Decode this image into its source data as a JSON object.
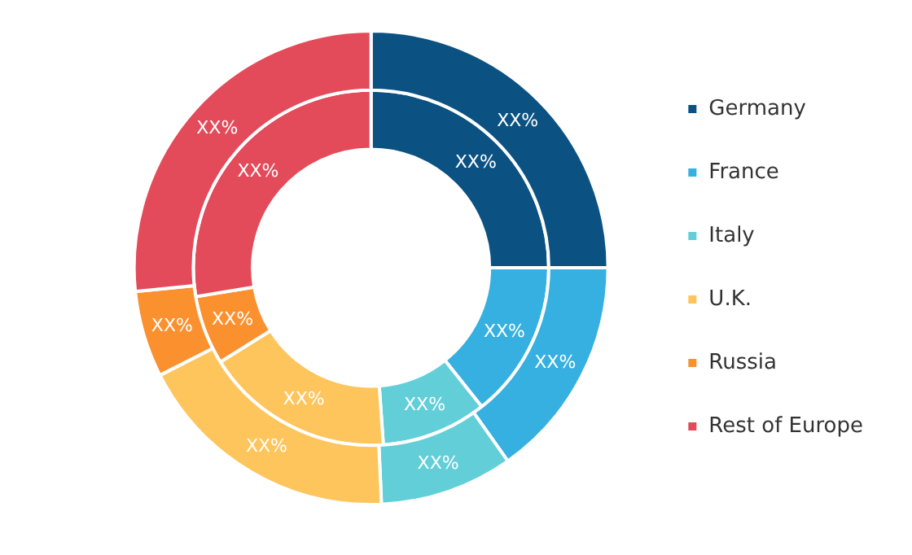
{
  "chart_data": {
    "type": "donut",
    "categories": [
      "Germany",
      "France",
      "Italy",
      "U.K.",
      "Russia",
      "Rest of Europe"
    ],
    "colors": [
      "#0b5282",
      "#36b0e0",
      "#62cfd8",
      "#fec55c",
      "#fb902f",
      "#e34b5a"
    ],
    "series": [
      {
        "values": [
          25,
          15.2,
          9.1,
          18.2,
          5.9,
          26.6
        ],
        "value_labels": [
          "XX%",
          "XX%",
          "XX%",
          "XX%",
          "XX%",
          "XX%"
        ]
      },
      {
        "values": [
          25,
          14.3,
          9.6,
          17.2,
          6.3,
          27.6
        ],
        "value_labels": [
          "XX%",
          "XX%",
          "XX%",
          "XX%",
          "XX%",
          "XX%"
        ]
      }
    ],
    "legend": "right"
  }
}
